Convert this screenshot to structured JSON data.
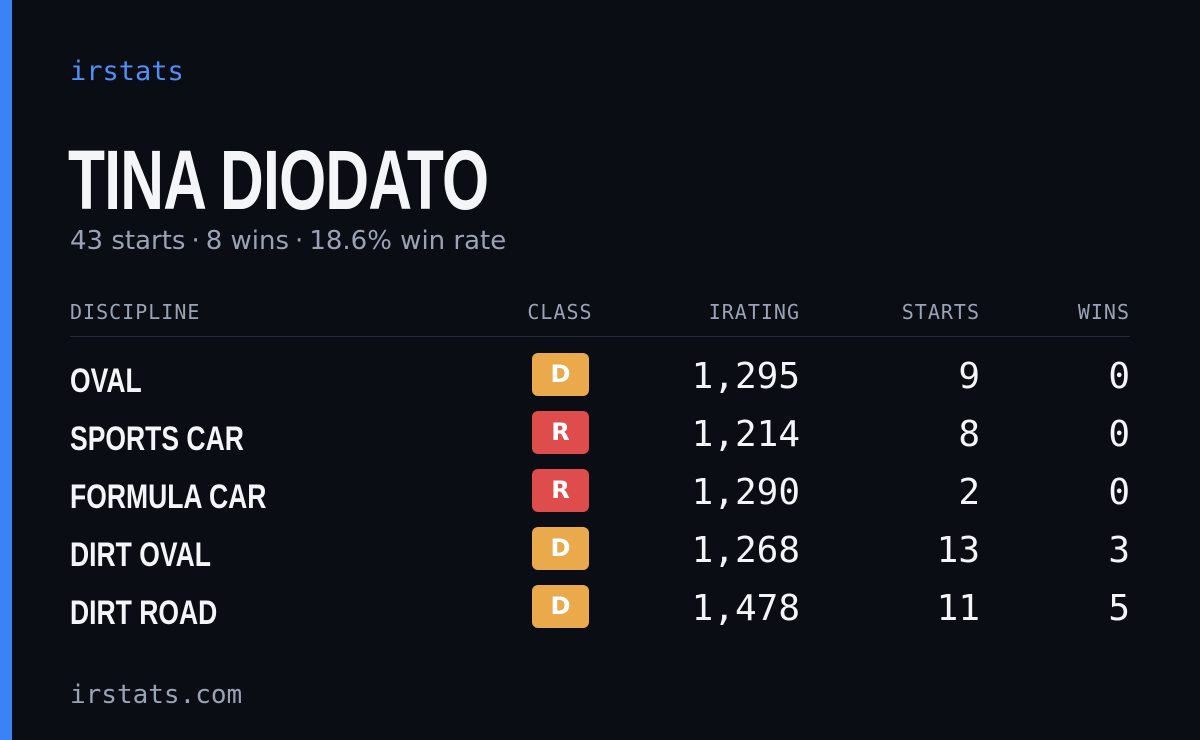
{
  "brand": "irstats",
  "player": {
    "name": "TINA DIODATO",
    "starts_text": "43 starts",
    "wins_text": "8 wins",
    "win_rate_text": "18.6% win rate",
    "separator": "·"
  },
  "colors": {
    "accent": "#3b82f6",
    "class_D": "#eaaa4b",
    "class_R": "#de4d4b",
    "background": "#0b0d14"
  },
  "table": {
    "headers": {
      "discipline": "DISCIPLINE",
      "class": "CLASS",
      "irating": "IRATING",
      "starts": "STARTS",
      "wins": "WINS"
    },
    "rows": [
      {
        "discipline": "OVAL",
        "class": "D",
        "irating": "1,295",
        "starts": "9",
        "wins": "0"
      },
      {
        "discipline": "SPORTS CAR",
        "class": "R",
        "irating": "1,214",
        "starts": "8",
        "wins": "0"
      },
      {
        "discipline": "FORMULA CAR",
        "class": "R",
        "irating": "1,290",
        "starts": "2",
        "wins": "0"
      },
      {
        "discipline": "DIRT OVAL",
        "class": "D",
        "irating": "1,268",
        "starts": "13",
        "wins": "3"
      },
      {
        "discipline": "DIRT ROAD",
        "class": "D",
        "irating": "1,478",
        "starts": "11",
        "wins": "5"
      }
    ]
  },
  "footer": {
    "url": "irstats.com"
  }
}
